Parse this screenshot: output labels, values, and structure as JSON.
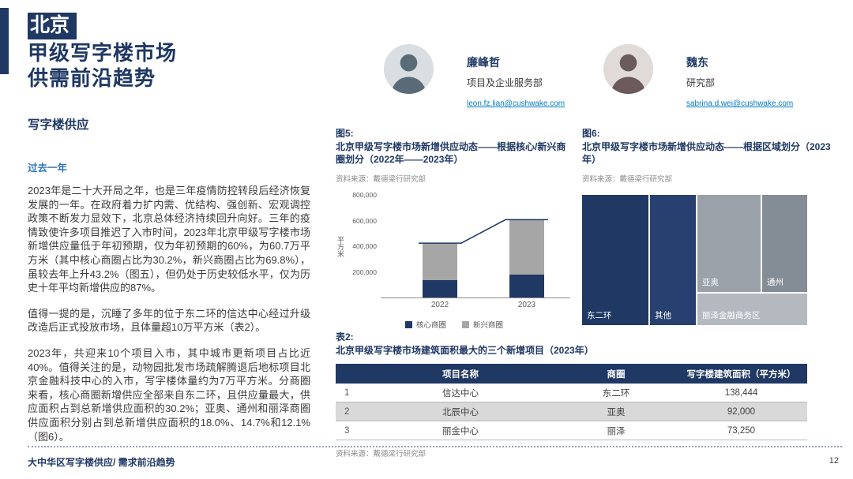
{
  "colors": {
    "navy": "#1f3864",
    "accent_blue": "#2e75b6",
    "link_blue": "#0079c1",
    "bar_gray": "#a6a6a6",
    "table_alt_row": "#d9d9d9"
  },
  "header": {
    "title_highlight": "北京",
    "title_line2": "甲级写字楼市场",
    "title_line3": "供需前沿趋势",
    "section_heading": "写字楼供应"
  },
  "left_column": {
    "subsection": "过去一年",
    "para1": "2023年是二十大开局之年，也是三年疫情防控转段后经济恢复发展的一年。在政府着力扩内需、优结构、强创新、宏观调控政策不断发力显效下，北京总体经济持续回升向好。三年的疫情致使许多项目推迟了入市时间，2023年北京甲级写字楼市场新增供应量低于年初预期，仅为年初预期的60%，为60.7万平方米（其中核心商圈占比为30.2%，新兴商圈占比为69.8%），虽较去年上升43.2%（图五），但仍处于历史较低水平，仅为历史十年平均新增供应的87%。",
    "para2": "值得一提的是，沉睡了多年的位于东二环的信达中心经过升级改造后正式投放市场，且体量超10万平方米（表2）。",
    "para3": "2023年，共迎来10个项目入市，其中城市更新项目占比近40%。值得关注的是，动物园批发市场疏解腾退后地标项目北京金融科技中心的入市，写字楼体量约为7万平方米。分商圈来看，核心商圈新增供应全部来自东二环，且供应量最大，供应面积占到总新增供应面积的30.2%；亚奥、通州和丽泽商圈供应面积分别占到总新增供应面积的18.0%、14.7%和12.1%（图6）。"
  },
  "contacts": [
    {
      "name": "廉峰哲",
      "dept": "项目及企业服务部",
      "email": "leon.fz.lian@cushwake.com"
    },
    {
      "name": "魏东",
      "dept": "研究部",
      "email": "sabrina.d.wei@cushwake.com"
    }
  ],
  "figure5": {
    "label": "图5:",
    "title": "北京甲级写字楼市场新增供应动态——根据核心/新兴商圈划分（2022年——2023年）",
    "source": "资料来源：戴德梁行研究部"
  },
  "figure6": {
    "label": "图6:",
    "title": "北京甲级写字楼市场新增供应动态——根据区域划分（2023年）",
    "source": "资料来源：戴德梁行研究部"
  },
  "table2": {
    "label": "表2:",
    "title": "北京甲级写字楼市场建筑面积最大的三个新增项目（2023年）",
    "headers": [
      "项目名称",
      "商圈",
      "写字楼建筑面积（平方米）"
    ],
    "rows": [
      [
        "1",
        "信达中心",
        "东二环",
        "138,444"
      ],
      [
        "2",
        "北辰中心",
        "亚奥",
        "92,000"
      ],
      [
        "3",
        "丽金中心",
        "丽泽",
        "73,250"
      ]
    ],
    "source": "资料来源：戴德梁行研究部"
  },
  "footer": {
    "left": "大中华区写字楼供应/ 需求前沿趋势",
    "page": "12"
  },
  "chart_data": [
    {
      "type": "bar",
      "stacked": true,
      "title": "北京甲级写字楼市场新增供应动态——根据核心/新兴商圈划分（2022年——2023年）",
      "categories": [
        "2022",
        "2023"
      ],
      "series": [
        {
          "name": "核心商圈",
          "color": "#1f3864",
          "values": [
            140000,
            183000
          ]
        },
        {
          "name": "新兴商圈",
          "color": "#a6a6a6",
          "values": [
            284000,
            424000
          ]
        }
      ],
      "totals": [
        424000,
        607000
      ],
      "ylabel": "平方米",
      "ylim": [
        0,
        800000
      ],
      "ytick_labels": [
        "800,000",
        "600,000",
        "400,000",
        "200,000"
      ],
      "grid": false,
      "legend_position": "bottom",
      "line_overlay": "navy trend line along stacked totals"
    },
    {
      "type": "treemap",
      "title": "北京甲级写字楼市场新增供应动态——根据区域划分（2023年）",
      "items": [
        {
          "label": "东二环",
          "share_pct": 30.2,
          "color": "#1f3864"
        },
        {
          "label": "其他",
          "share_pct": 25.0,
          "color": "#27406f"
        },
        {
          "label": "亚奥",
          "share_pct": 18.0,
          "color": "#9aa1a9"
        },
        {
          "label": "通州",
          "share_pct": 14.7,
          "color": "#848d96"
        },
        {
          "label": "丽泽金融商务区",
          "share_pct": 12.1,
          "color": "#b3b9bf"
        }
      ]
    }
  ]
}
